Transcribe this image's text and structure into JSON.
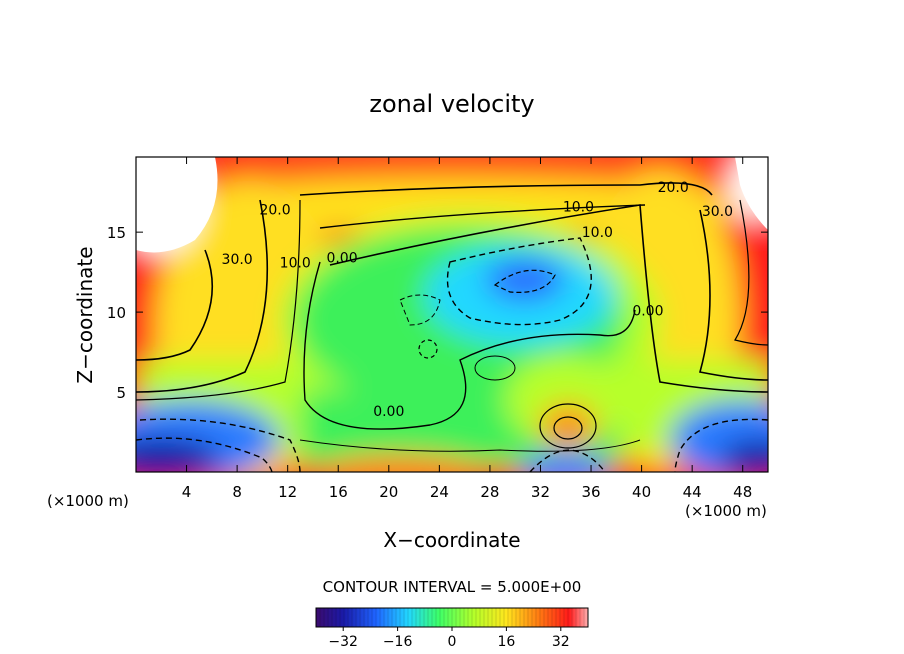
{
  "chart_data": {
    "type": "heatmap",
    "title": "zonal velocity",
    "xlabel": "X−coordinate",
    "ylabel": "Z−coordinate",
    "x_unit_label": "(×1000 m)",
    "y_unit_label": "(×1000 m)",
    "xlim": [
      0,
      50
    ],
    "ylim": [
      0,
      19.7
    ],
    "x_ticks": [
      4,
      8,
      12,
      16,
      20,
      24,
      28,
      32,
      36,
      40,
      44,
      48
    ],
    "y_ticks": [
      5,
      10,
      15
    ],
    "contour_interval_text": "CONTOUR INTERVAL = 5.000E+00",
    "colorbar": {
      "range": [
        -40,
        40
      ],
      "ticks": [
        -32,
        -16,
        0,
        16,
        32
      ],
      "tick_labels": [
        "−32",
        "−16",
        "0",
        "16",
        "32"
      ]
    },
    "contour_labels": [
      {
        "text": "30.0",
        "x": 8,
        "y": 13
      },
      {
        "text": "20.0",
        "x": 11,
        "y": 16.1
      },
      {
        "text": "10.0",
        "x": 12.6,
        "y": 12.8
      },
      {
        "text": "0.00",
        "x": 16.3,
        "y": 13.1
      },
      {
        "text": "0.00",
        "x": 20,
        "y": 3.5
      },
      {
        "text": "20.0",
        "x": 42.5,
        "y": 17.5
      },
      {
        "text": "10.0",
        "x": 35,
        "y": 16.3
      },
      {
        "text": "10.0",
        "x": 36.5,
        "y": 14.7
      },
      {
        "text": "0.00",
        "x": 40.5,
        "y": 9.8
      },
      {
        "text": "30.0",
        "x": 46,
        "y": 16
      }
    ]
  }
}
